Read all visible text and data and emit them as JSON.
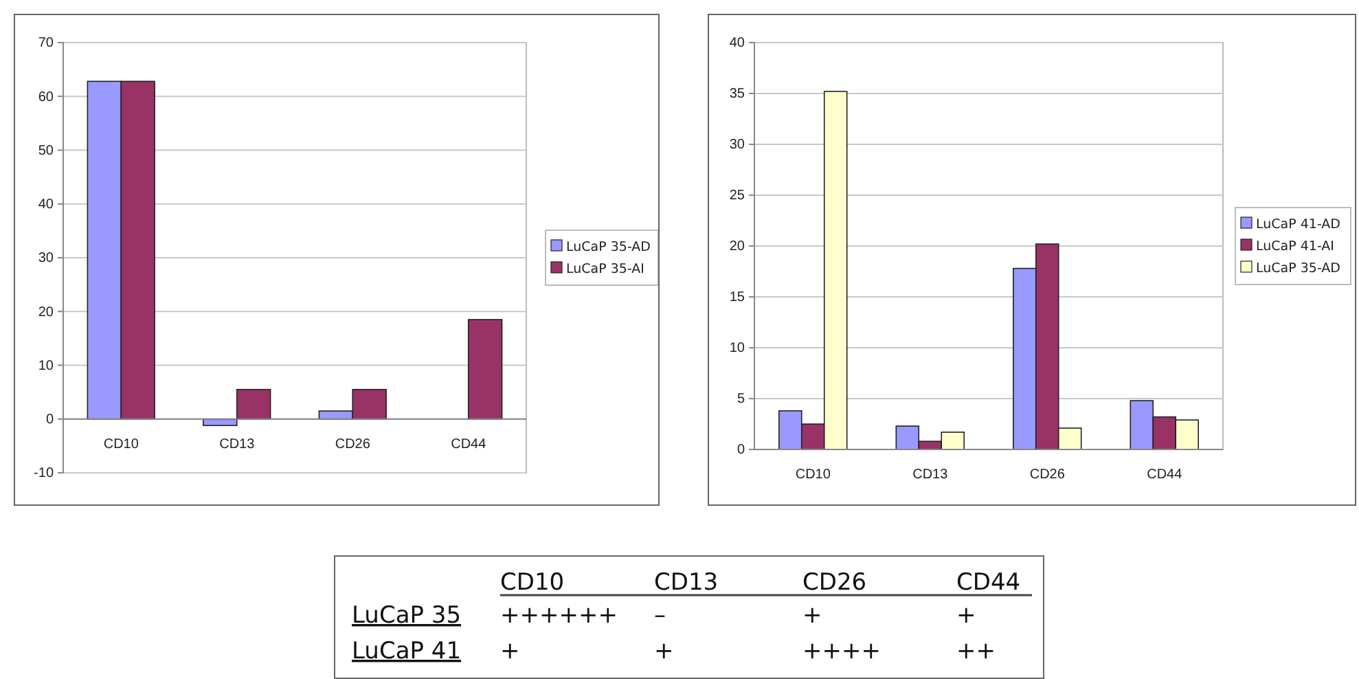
{
  "chart_data": [
    {
      "type": "bar",
      "categories": [
        "CD10",
        "CD13",
        "CD26",
        "CD44"
      ],
      "series": [
        {
          "name": "LuCaP 35-AD",
          "color": "#9999ff",
          "values": [
            62.8,
            -1.2,
            1.5,
            null
          ]
        },
        {
          "name": "LuCaP 35-AI",
          "color": "#993366",
          "values": [
            62.8,
            5.5,
            5.5,
            18.5
          ]
        }
      ],
      "ylim": [
        -10,
        70
      ],
      "yticks": [
        -10,
        0,
        10,
        20,
        30,
        40,
        50,
        60,
        70
      ],
      "grid": "y",
      "legend": "right"
    },
    {
      "type": "bar",
      "categories": [
        "CD10",
        "CD13",
        "CD26",
        "CD44"
      ],
      "series": [
        {
          "name": "LuCaP 41-AD",
          "color": "#9999ff",
          "values": [
            3.8,
            2.3,
            17.8,
            4.8
          ]
        },
        {
          "name": "LuCaP 41-AI",
          "color": "#993366",
          "values": [
            2.5,
            0.8,
            20.2,
            3.2
          ]
        },
        {
          "name": "LuCaP 35-AD",
          "color": "#ffffcc",
          "values": [
            35.2,
            1.7,
            2.1,
            2.9
          ]
        }
      ],
      "ylim": [
        0,
        40
      ],
      "yticks": [
        0,
        5,
        10,
        15,
        20,
        25,
        30,
        35,
        40
      ],
      "grid": "y",
      "legend": "right"
    },
    {
      "type": "other",
      "categories": [
        "CD10",
        "CD13",
        "CD26",
        "CD44"
      ],
      "y_categories": [
        "LuCaP 35",
        "LuCaP 41"
      ],
      "cell_labels": [
        [
          "++++++",
          "–",
          "+",
          "+"
        ],
        [
          "+",
          "+",
          "++++",
          "++"
        ]
      ]
    }
  ]
}
